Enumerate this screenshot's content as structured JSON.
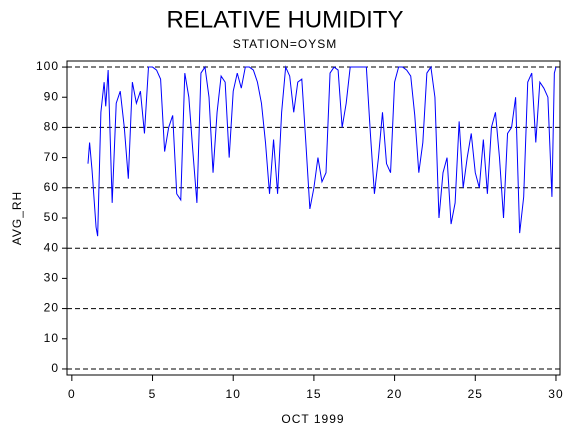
{
  "chart_data": {
    "type": "line",
    "title": "RELATIVE HUMIDITY",
    "subtitle": "STATION=OYSM",
    "xlabel": "OCT 1999",
    "ylabel": "AVG_RH",
    "x": [
      1.0,
      1.1,
      1.25,
      1.5,
      1.6,
      1.8,
      2.0,
      2.1,
      2.25,
      2.5,
      2.75,
      3.0,
      3.25,
      3.5,
      3.75,
      4.0,
      4.25,
      4.5,
      4.75,
      5.0,
      5.25,
      5.5,
      5.75,
      6.0,
      6.25,
      6.5,
      6.75,
      7.0,
      7.25,
      7.5,
      7.75,
      8.0,
      8.25,
      8.5,
      8.75,
      9.0,
      9.25,
      9.5,
      9.75,
      10.0,
      10.25,
      10.5,
      10.75,
      11.0,
      11.25,
      11.5,
      11.75,
      12.0,
      12.25,
      12.5,
      12.75,
      13.0,
      13.25,
      13.5,
      13.75,
      14.0,
      14.25,
      14.5,
      14.75,
      15.0,
      15.25,
      15.5,
      15.75,
      16.0,
      16.25,
      16.5,
      16.75,
      17.0,
      17.25,
      17.5,
      17.75,
      18.0,
      18.25,
      18.5,
      18.75,
      19.0,
      19.25,
      19.5,
      19.75,
      20.0,
      20.25,
      20.5,
      20.75,
      21.0,
      21.25,
      21.5,
      21.75,
      22.0,
      22.25,
      22.5,
      22.75,
      23.0,
      23.25,
      23.5,
      23.75,
      24.0,
      24.25,
      24.5,
      24.75,
      25.0,
      25.25,
      25.5,
      25.75,
      26.0,
      26.25,
      26.5,
      26.75,
      27.0,
      27.25,
      27.5,
      27.75,
      28.0,
      28.25,
      28.5,
      28.75,
      29.0,
      29.25,
      29.5,
      29.75,
      29.9,
      30.0
    ],
    "values": [
      68,
      75,
      66,
      47,
      44,
      85,
      95,
      87,
      99,
      55,
      88,
      92,
      80,
      63,
      95,
      88,
      92,
      78,
      100,
      100,
      99,
      96,
      72,
      80,
      84,
      58,
      56,
      98,
      90,
      72,
      55,
      98,
      100,
      90,
      65,
      85,
      97,
      95,
      70,
      92,
      98,
      93,
      100,
      100,
      99,
      95,
      88,
      75,
      58,
      76,
      58,
      85,
      100,
      97,
      85,
      95,
      96,
      75,
      53,
      60,
      70,
      62,
      65,
      98,
      100,
      99,
      80,
      88,
      100,
      100,
      100,
      100,
      100,
      78,
      58,
      70,
      85,
      68,
      65,
      95,
      100,
      100,
      99,
      97,
      84,
      65,
      75,
      98,
      100,
      90,
      50,
      65,
      70,
      48,
      55,
      82,
      60,
      70,
      78,
      65,
      60,
      76,
      58,
      80,
      85,
      70,
      50,
      78,
      80,
      90,
      45,
      57,
      95,
      98,
      75,
      95,
      93,
      90,
      57,
      98,
      100
    ],
    "color": "#0000ff",
    "xlim": [
      -0.3,
      30.25
    ],
    "xticks": [
      0,
      5,
      10,
      15,
      20,
      25,
      30
    ],
    "ylim": [
      -2,
      102
    ],
    "yticks": [
      0,
      10,
      20,
      30,
      40,
      50,
      60,
      70,
      80,
      90,
      100
    ],
    "ygrid": [
      0,
      20,
      40,
      60,
      80,
      100
    ]
  }
}
